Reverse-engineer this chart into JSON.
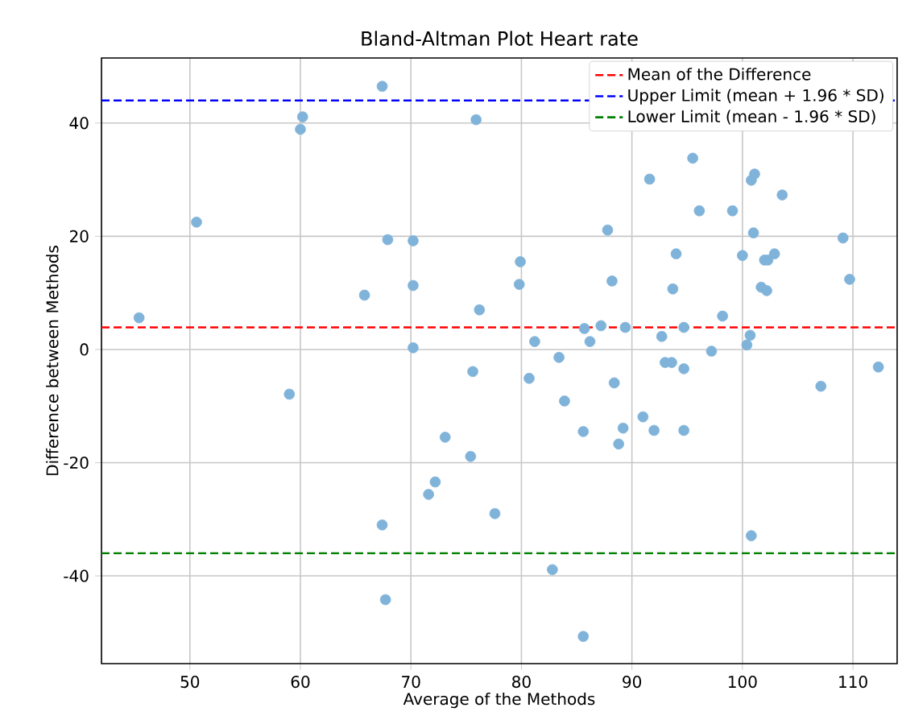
{
  "chart_data": {
    "type": "scatter",
    "title": "Bland-Altman Plot Heart rate",
    "xlabel": "Average of the Methods",
    "ylabel": "Difference between Methods",
    "xlim": [
      42,
      114
    ],
    "ylim": [
      -55.5,
      51.5
    ],
    "xticks": [
      50,
      60,
      70,
      80,
      90,
      100,
      110
    ],
    "yticks": [
      -40,
      -20,
      0,
      20,
      40
    ],
    "grid": true,
    "legend": "top right",
    "marker": "circle",
    "series": [
      {
        "color": "#80b3d9",
        "x": [
          45.4,
          50.6,
          59.0,
          60.0,
          60.2,
          65.8,
          67.4,
          67.9,
          67.4,
          67.7,
          70.2,
          70.2,
          70.2,
          71.6,
          72.2,
          73.1,
          75.4,
          75.6,
          75.9,
          76.2,
          77.6,
          79.8,
          79.9,
          80.7,
          81.2,
          82.8,
          83.4,
          83.9,
          85.6,
          85.6,
          85.7,
          86.2,
          87.2,
          87.8,
          88.2,
          88.4,
          88.8,
          89.2,
          89.4,
          91.0,
          91.6,
          92.0,
          92.7,
          93.0,
          93.6,
          93.7,
          94.0,
          94.7,
          94.7,
          94.7,
          95.5,
          96.1,
          97.2,
          98.2,
          99.1,
          100.0,
          100.4,
          100.7,
          100.8,
          100.8,
          101.0,
          101.1,
          101.7,
          102.0,
          102.2,
          102.3,
          102.9,
          103.6,
          107.1,
          109.1,
          109.7,
          112.3
        ],
        "values": [
          5.6,
          22.5,
          -7.9,
          38.9,
          41.1,
          9.6,
          46.5,
          19.4,
          -31.0,
          -44.2,
          19.2,
          11.3,
          0.3,
          -25.6,
          -23.4,
          -15.5,
          -18.9,
          -3.9,
          40.6,
          7.0,
          -29.0,
          11.5,
          15.5,
          -5.1,
          1.4,
          -38.9,
          -1.4,
          -9.1,
          -14.5,
          -50.7,
          3.7,
          1.4,
          4.2,
          21.1,
          12.1,
          -5.9,
          -16.7,
          -13.9,
          3.9,
          -11.9,
          30.1,
          -14.3,
          2.3,
          -2.3,
          -2.3,
          10.7,
          16.9,
          3.9,
          -3.4,
          -14.3,
          33.8,
          24.5,
          -0.3,
          5.9,
          24.5,
          16.6,
          0.8,
          2.5,
          29.9,
          -32.9,
          20.6,
          31.0,
          11.0,
          15.8,
          10.4,
          15.8,
          16.9,
          27.3,
          -6.5,
          19.7,
          12.4,
          -3.1
        ]
      }
    ],
    "ref_lines": [
      {
        "axis": "y",
        "value": 3.9,
        "label": "Mean of the Difference",
        "color": "#ff0000",
        "line_style": "dashed"
      },
      {
        "axis": "y",
        "value": 44,
        "label": "Upper Limit (mean + 1.96 * SD)",
        "color": "#0000ff",
        "line_style": "dashed"
      },
      {
        "axis": "y",
        "value": -36,
        "label": "Lower Limit (mean - 1.96 * SD)",
        "color": "#008000",
        "line_style": "dashed"
      }
    ]
  }
}
